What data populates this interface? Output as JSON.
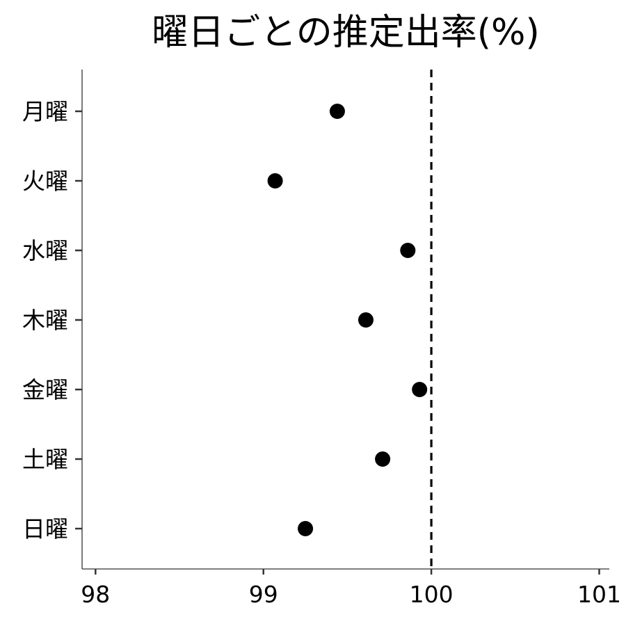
{
  "chart_data": {
    "type": "scatter",
    "title": "曜日ごとの推定出率(%)",
    "xlabel": "",
    "ylabel": "",
    "categories": [
      "月曜",
      "火曜",
      "水曜",
      "木曜",
      "金曜",
      "土曜",
      "日曜"
    ],
    "values": [
      99.44,
      99.07,
      99.86,
      99.61,
      99.93,
      99.71,
      99.25
    ],
    "xlim": [
      97.92,
      101.06
    ],
    "x_ticks": [
      98,
      99,
      100,
      101
    ],
    "x_tick_labels": [
      "98",
      "99",
      "100",
      "101"
    ],
    "reference_line": {
      "x": 100,
      "style": "dashed"
    },
    "grid": false,
    "legend": "none",
    "colors": {
      "points": "#000000",
      "axis": "#333333",
      "reference": "#000000"
    }
  }
}
